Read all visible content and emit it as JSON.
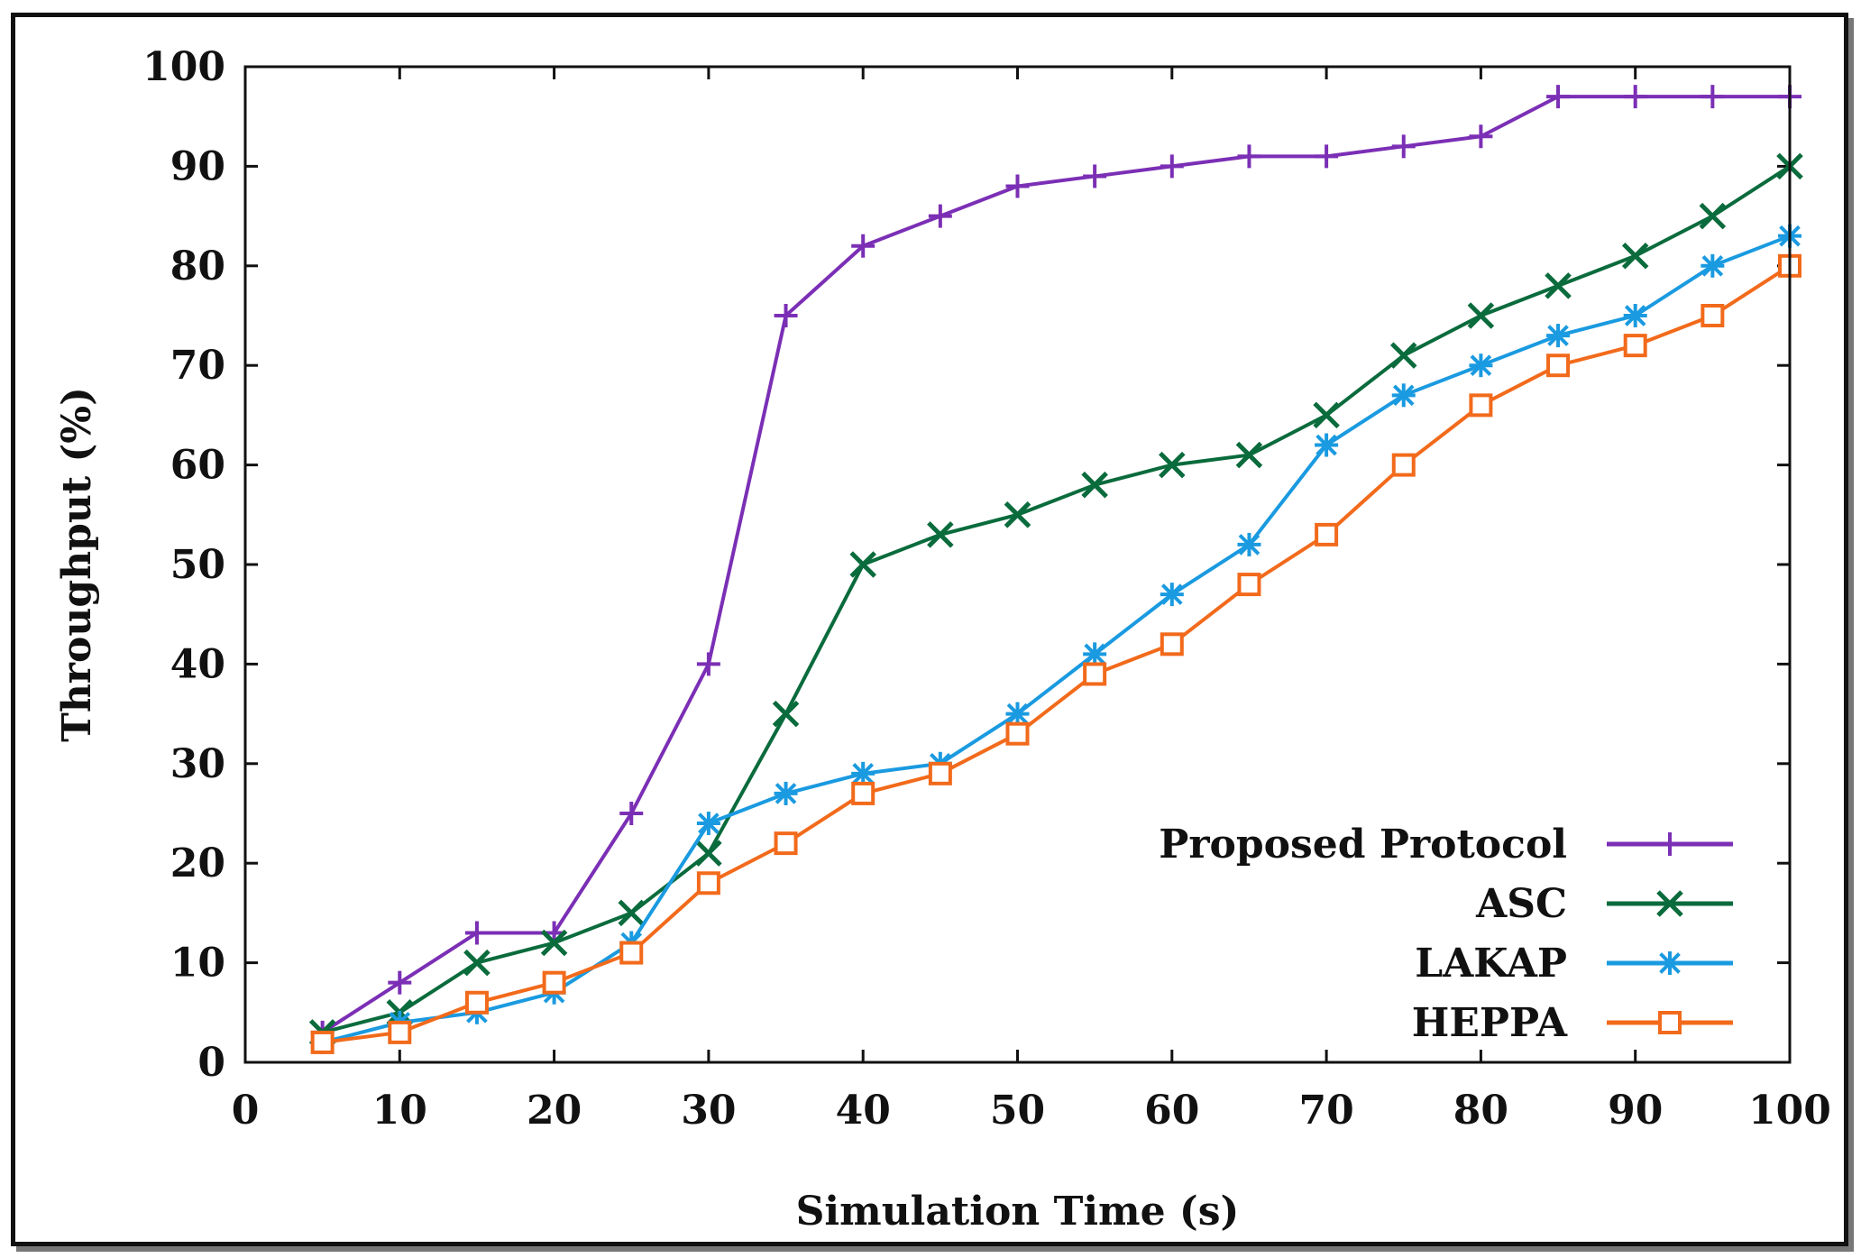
{
  "chart_data": {
    "type": "line",
    "title": "",
    "xlabel": "Simulation Time (s)",
    "ylabel": "Throughput (%)",
    "xlim": [
      0,
      100
    ],
    "ylim": [
      0,
      100
    ],
    "x_ticks": [
      0,
      10,
      20,
      30,
      40,
      50,
      60,
      70,
      80,
      90,
      100
    ],
    "y_ticks": [
      0,
      10,
      20,
      30,
      40,
      50,
      60,
      70,
      80,
      90,
      100
    ],
    "legend_position": "bottom-right",
    "x": [
      5,
      10,
      15,
      20,
      25,
      30,
      35,
      40,
      45,
      50,
      55,
      60,
      65,
      70,
      75,
      80,
      85,
      90,
      95,
      100
    ],
    "series": [
      {
        "name": "Proposed Protocol",
        "color": "#7b2fb5",
        "marker": "plus",
        "values": [
          3,
          8,
          13,
          13,
          25,
          40,
          75,
          82,
          85,
          88,
          89,
          90,
          91,
          91,
          92,
          93,
          97,
          97,
          97,
          97
        ]
      },
      {
        "name": "ASC",
        "color": "#0a6b3c",
        "marker": "cross",
        "values": [
          3,
          5,
          10,
          12,
          15,
          21,
          35,
          50,
          53,
          55,
          58,
          60,
          61,
          65,
          71,
          75,
          78,
          81,
          85,
          90
        ]
      },
      {
        "name": "LAKAP",
        "color": "#1a9ae0",
        "marker": "star",
        "values": [
          2,
          4,
          5,
          7,
          12,
          24,
          27,
          29,
          30,
          35,
          41,
          47,
          52,
          62,
          67,
          70,
          73,
          75,
          80,
          83
        ]
      },
      {
        "name": "HEPPA",
        "color": "#f26a1b",
        "marker": "square",
        "values": [
          2,
          3,
          6,
          8,
          11,
          18,
          22,
          27,
          29,
          33,
          39,
          42,
          48,
          53,
          60,
          66,
          70,
          72,
          75,
          80
        ]
      }
    ]
  }
}
